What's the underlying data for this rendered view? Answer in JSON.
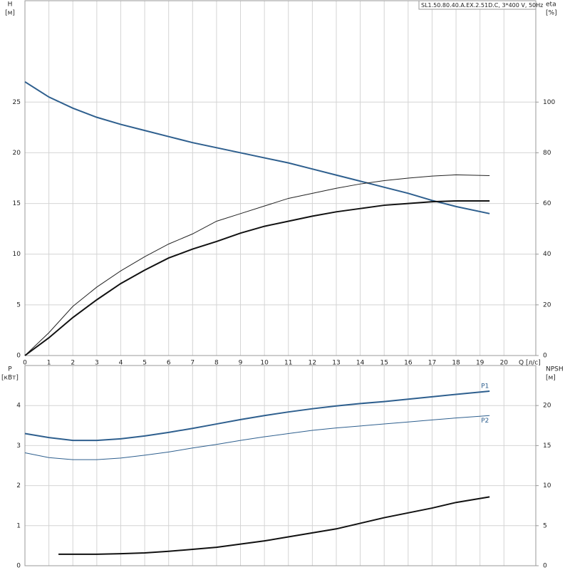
{
  "chart_data": [
    {
      "type": "line",
      "title": "SL1.50.80.40.A.EX.2.51D.C, 3*400 V, 50Hz",
      "y_label": "H",
      "y_unit": "[м]",
      "y2_label": "eta",
      "y2_unit": "[%]",
      "x_label": "Q [л/с]",
      "xlim": [
        0,
        21.33
      ],
      "xticks": [
        0,
        1,
        2,
        3,
        4,
        5,
        6,
        7,
        8,
        9,
        10,
        11,
        12,
        13,
        14,
        15,
        16,
        17,
        18,
        19,
        20
      ],
      "ylim": [
        0,
        35
      ],
      "yticks": [
        0,
        5,
        10,
        15,
        20,
        25
      ],
      "y2lim": [
        0,
        140
      ],
      "y2ticks": [
        0,
        20,
        40,
        60,
        80,
        100
      ],
      "grid": true,
      "series": [
        {
          "color": "#2e5f8e",
          "width": 2,
          "x": [
            0,
            1,
            2,
            3,
            4,
            5,
            6,
            7,
            8,
            9,
            10,
            11,
            12,
            13,
            14,
            15,
            16,
            17,
            18,
            19.4
          ],
          "values": [
            27,
            25.5,
            24.4,
            23.5,
            22.8,
            22.2,
            21.6,
            21.0,
            20.5,
            20.0,
            19.5,
            19.0,
            18.4,
            17.8,
            17.2,
            16.6,
            16.0,
            15.3,
            14.7,
            14.0
          ]
        },
        {
          "color": "#222222",
          "width": 1,
          "axis": "y2",
          "x": [
            0,
            1,
            2,
            3,
            4,
            5,
            6,
            7,
            8,
            9,
            10,
            11,
            12,
            13,
            14,
            15,
            16,
            17,
            18,
            19.4
          ],
          "values": [
            0,
            9,
            19.4,
            27,
            33.4,
            39,
            44,
            48,
            53,
            56,
            59,
            62,
            64,
            66,
            67.7,
            69,
            70,
            70.8,
            71.3,
            71
          ]
        },
        {
          "color": "#111111",
          "width": 2,
          "axis": "y2",
          "x": [
            0,
            1,
            2,
            3,
            4,
            5,
            6,
            7,
            8,
            9,
            10,
            11,
            12,
            13,
            14,
            15,
            16,
            17,
            18,
            19.4
          ],
          "values": [
            0,
            7,
            15,
            22,
            28.4,
            33.7,
            38.5,
            42,
            45,
            48.3,
            51,
            53,
            55,
            56.7,
            58,
            59.3,
            60,
            60.7,
            61,
            61
          ]
        }
      ]
    },
    {
      "type": "line",
      "y_label": "P",
      "y_unit": "[кВт]",
      "y2_label": "NPSH",
      "y2_unit": "[м]",
      "xlim": [
        0,
        21.33
      ],
      "ylim": [
        0,
        5
      ],
      "yticks": [
        0,
        1,
        2,
        3,
        4
      ],
      "y2lim": [
        0,
        25
      ],
      "y2ticks": [
        0,
        5,
        10,
        15,
        20
      ],
      "grid": true,
      "series": [
        {
          "name": "P1",
          "color": "#2e5f8e",
          "width": 2,
          "x": [
            0,
            1,
            2,
            3,
            4,
            5,
            6,
            7,
            8,
            9,
            10,
            11,
            12,
            13,
            14,
            15,
            16,
            17,
            18,
            19.4
          ],
          "values": [
            3.3,
            3.2,
            3.13,
            3.13,
            3.17,
            3.24,
            3.33,
            3.43,
            3.54,
            3.65,
            3.75,
            3.84,
            3.92,
            3.99,
            4.05,
            4.1,
            4.16,
            4.22,
            4.28,
            4.36
          ]
        },
        {
          "name": "P2",
          "color": "#2e5f8e",
          "width": 1,
          "x": [
            0,
            1,
            2,
            3,
            4,
            5,
            6,
            7,
            8,
            9,
            10,
            11,
            12,
            13,
            14,
            15,
            16,
            17,
            18,
            19.4
          ],
          "values": [
            2.82,
            2.7,
            2.65,
            2.65,
            2.69,
            2.76,
            2.84,
            2.94,
            3.03,
            3.13,
            3.22,
            3.3,
            3.38,
            3.44,
            3.49,
            3.54,
            3.59,
            3.64,
            3.69,
            3.75
          ]
        },
        {
          "color": "#111111",
          "width": 2,
          "axis": "y2",
          "x": [
            1.4,
            2,
            3,
            4,
            5,
            6,
            7,
            8,
            9,
            10,
            11,
            12,
            13,
            14,
            15,
            16,
            17,
            18,
            19.4
          ],
          "values": [
            1.43,
            1.43,
            1.43,
            1.5,
            1.6,
            1.8,
            2.05,
            2.3,
            2.7,
            3.1,
            3.6,
            4.1,
            4.6,
            5.3,
            6.0,
            6.6,
            7.2,
            7.9,
            8.6
          ]
        }
      ]
    }
  ]
}
